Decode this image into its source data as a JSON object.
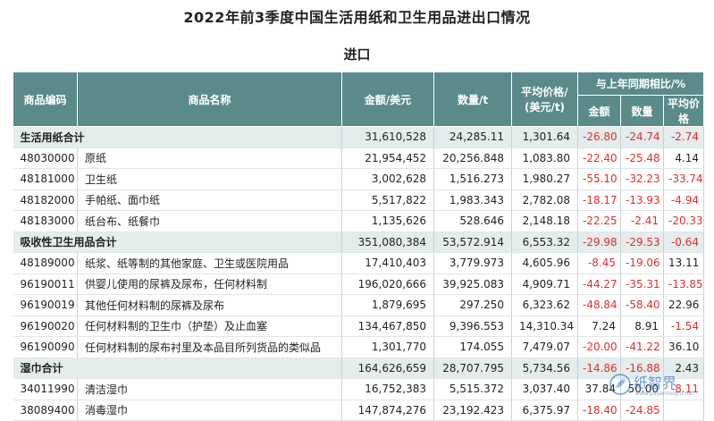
{
  "page": {
    "title": "2022年前3季度中国生活用纸和卫生用品进出口情况",
    "subtitle": "进口"
  },
  "table": {
    "headers": {
      "code": "商品编码",
      "name": "商品名称",
      "amount": "金额/美元",
      "quantity": "数量/t",
      "avg_price_line1": "平均价格/",
      "avg_price_line2": "(美元/t)",
      "yoy_group": "与上年同期相比/%",
      "yoy_amount": "金额",
      "yoy_quantity": "数量",
      "yoy_price": "平均价格"
    },
    "rows": [
      {
        "group": true,
        "code": "生活用纸合计",
        "name": "",
        "amount": "31,610,528",
        "quantity": "24,285.11",
        "price": "1,301.64",
        "yoy_amount": "-26.80",
        "yoy_quantity": "-24.74",
        "yoy_price": "-2.74"
      },
      {
        "group": false,
        "code": "48030000",
        "name": "原纸",
        "amount": "21,954,452",
        "quantity": "20,256.848",
        "price": "1,083.80",
        "yoy_amount": "-22.40",
        "yoy_quantity": "-25.48",
        "yoy_price": "4.14"
      },
      {
        "group": false,
        "code": "48181000",
        "name": "卫生纸",
        "amount": "3,002,628",
        "quantity": "1,516.273",
        "price": "1,980.27",
        "yoy_amount": "-55.10",
        "yoy_quantity": "-32.23",
        "yoy_price": "-33.74"
      },
      {
        "group": false,
        "code": "48182000",
        "name": "手帕纸、面巾纸",
        "amount": "5,517,822",
        "quantity": "1,983.343",
        "price": "2,782.08",
        "yoy_amount": "-18.17",
        "yoy_quantity": "-13.93",
        "yoy_price": "-4.94"
      },
      {
        "group": false,
        "code": "48183000",
        "name": "纸台布、纸餐巾",
        "amount": "1,135,626",
        "quantity": "528.646",
        "price": "2,148.18",
        "yoy_amount": "-22.25",
        "yoy_quantity": "-2.41",
        "yoy_price": "-20.33"
      },
      {
        "group": true,
        "code": "吸收性卫生用品合计",
        "name": "",
        "amount": "351,080,384",
        "quantity": "53,572.914",
        "price": "6,553.32",
        "yoy_amount": "-29.98",
        "yoy_quantity": "-29.53",
        "yoy_price": "-0.64"
      },
      {
        "group": false,
        "code": "48189000",
        "name": "纸浆、纸等制的其他家庭、卫生或医院用品",
        "amount": "17,410,403",
        "quantity": "3,779.973",
        "price": "4,605.96",
        "yoy_amount": "-8.45",
        "yoy_quantity": "-19.06",
        "yoy_price": "13.11"
      },
      {
        "group": false,
        "code": "96190011",
        "name": "供婴儿使用的尿裤及尿布，任何材料制",
        "amount": "196,020,666",
        "quantity": "39,925.083",
        "price": "4,909.71",
        "yoy_amount": "-44.27",
        "yoy_quantity": "-35.31",
        "yoy_price": "-13.85"
      },
      {
        "group": false,
        "code": "96190019",
        "name": "其他任何材料制的尿裤及尿布",
        "amount": "1,879,695",
        "quantity": "297.250",
        "price": "6,323.62",
        "yoy_amount": "-48.84",
        "yoy_quantity": "-58.40",
        "yoy_price": "22.96"
      },
      {
        "group": false,
        "code": "96190020",
        "name": "任何材料制的卫生巾（护垫）及止血塞",
        "amount": "134,467,850",
        "quantity": "9,396.553",
        "price": "14,310.34",
        "yoy_amount": "7.24",
        "yoy_quantity": "8.91",
        "yoy_price": "-1.54"
      },
      {
        "group": false,
        "code": "96190090",
        "name": "任何材料制的尿布衬里及本品目所列货品的类似品",
        "amount": "1,301,770",
        "quantity": "174.055",
        "price": "7,479.07",
        "yoy_amount": "-20.00",
        "yoy_quantity": "-41.22",
        "yoy_price": "36.10"
      },
      {
        "group": true,
        "code": "湿巾合计",
        "name": "",
        "amount": "164,626,659",
        "quantity": "28,707.795",
        "price": "5,734.56",
        "yoy_amount": "-14.86",
        "yoy_quantity": "-16.88",
        "yoy_price": "2.43"
      },
      {
        "group": false,
        "code": "34011990",
        "name": "清洁湿巾",
        "amount": "16,752,383",
        "quantity": "5,515.372",
        "price": "3,037.40",
        "yoy_amount": "37.84",
        "yoy_quantity": "50.00",
        "yoy_price": "-8.11"
      },
      {
        "group": false,
        "code": "38089400",
        "name": "消毒湿巾",
        "amount": "147,874,276",
        "quantity": "23,192.423",
        "price": "6,375.97",
        "yoy_amount": "-18.40",
        "yoy_quantity": "-24.85",
        "yoy_price": ""
      }
    ]
  },
  "watermark": {
    "brand": "纸智界",
    "url": "www.paperinsight.net",
    "accent": "#3a7bd5"
  },
  "colors": {
    "header_bg": "#5a8a8a",
    "group_bg": "#e4ecec",
    "negative": "#e0302a"
  }
}
